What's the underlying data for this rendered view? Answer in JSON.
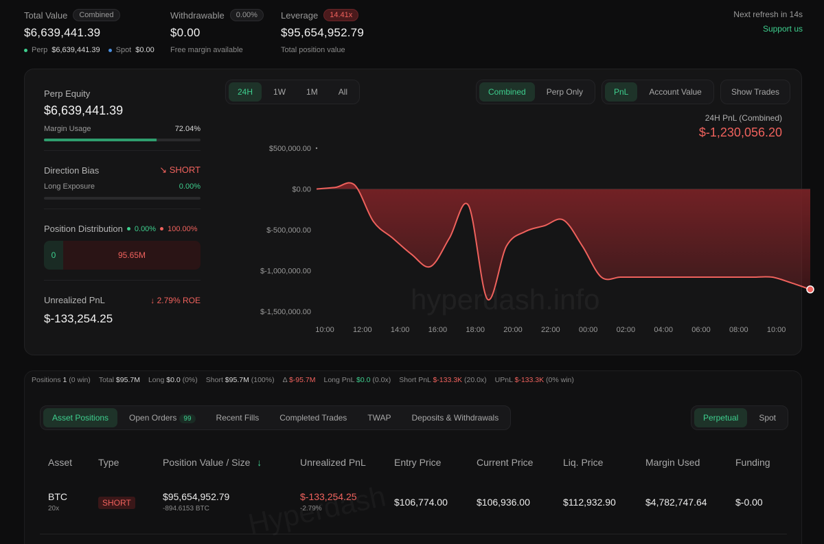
{
  "summary": {
    "total_value": {
      "label": "Total Value",
      "pill": "Combined",
      "value": "$6,639,441.39",
      "perp_label": "Perp",
      "perp_value": "$6,639,441.39",
      "spot_label": "Spot",
      "spot_value": "$0.00"
    },
    "withdrawable": {
      "label": "Withdrawable",
      "pill": "0.00%",
      "value": "$0.00",
      "sub": "Free margin available"
    },
    "leverage": {
      "label": "Leverage",
      "pill": "14.41x",
      "value": "$95,654,952.79",
      "sub": "Total position value"
    },
    "refresh": "Next refresh in 14s",
    "support": "Support us"
  },
  "left_panel": {
    "perp_equity": {
      "title": "Perp Equity",
      "value": "$6,639,441.39",
      "margin_label": "Margin Usage",
      "margin_value": "72.04%",
      "margin_fraction": 0.7204
    },
    "direction": {
      "title": "Direction Bias",
      "bias": "SHORT",
      "long_label": "Long Exposure",
      "long_value": "0.00%"
    },
    "distribution": {
      "title": "Position Distribution",
      "long_pct": "0.00%",
      "short_pct": "100.00%",
      "long_value": "0",
      "short_value": "95.65M"
    },
    "unrealized": {
      "title": "Unrealized PnL",
      "roe": "2.79% ROE",
      "value": "$-133,254.25"
    }
  },
  "chart_controls": {
    "ranges": [
      "24H",
      "1W",
      "1M",
      "All"
    ],
    "active_range": "24H",
    "scope": [
      "Combined",
      "Perp Only"
    ],
    "metric": [
      "PnL",
      "Account Value"
    ],
    "show_trades": "Show Trades",
    "title": "24H PnL (Combined)",
    "value": "$-1,230,056.20",
    "watermark": "hyperdash.info"
  },
  "chart_data": {
    "type": "area",
    "x": [
      "10:00",
      "11:00",
      "12:00",
      "13:00",
      "14:00",
      "15:00",
      "16:00",
      "17:00",
      "18:00",
      "18:30",
      "19:00",
      "20:00",
      "21:00",
      "22:00",
      "23:00",
      "00:00",
      "01:00",
      "02:00",
      "03:00",
      "04:00",
      "05:00",
      "06:00",
      "07:00",
      "08:00",
      "09:00",
      "10:00",
      "10:45"
    ],
    "values": [
      0,
      20000,
      50000,
      -400000,
      -600000,
      -800000,
      -950000,
      -600000,
      -200000,
      -1350000,
      -700000,
      -520000,
      -450000,
      -380000,
      -700000,
      -1080000,
      -1080000,
      -1080000,
      -1080000,
      -1080000,
      -1080000,
      -1080000,
      -1080000,
      -1080000,
      -1080000,
      -1150000,
      -1230056.2
    ],
    "y_ticks": [
      "$500,000.00",
      "$0.00",
      "$-500,000.00",
      "$-1,000,000.00",
      "$-1,500,000.00"
    ],
    "x_ticks": [
      "10:00",
      "12:00",
      "14:00",
      "16:00",
      "18:00",
      "20:00",
      "22:00",
      "00:00",
      "02:00",
      "04:00",
      "06:00",
      "08:00",
      "10:00"
    ],
    "ylim": [
      -1500000,
      500000
    ],
    "line_color": "#f0625d",
    "fill_color": "#7a2226"
  },
  "positions_strip": {
    "positions_label": "Positions",
    "positions_count": "1",
    "positions_win": "(0 win)",
    "total_label": "Total",
    "total_value": "$95.7M",
    "long_label": "Long",
    "long_value": "$0.0",
    "long_pct": "(0%)",
    "short_label": "Short",
    "short_value": "$95.7M",
    "short_pct": "(100%)",
    "delta_label": "Δ",
    "delta_value": "$-95.7M",
    "long_pnl_label": "Long PnL",
    "long_pnl_value": "$0.0",
    "long_pnl_x": "(0.0x)",
    "short_pnl_label": "Short PnL",
    "short_pnl_value": "$-133.3K",
    "short_pnl_x": "(20.0x)",
    "upnl_label": "UPnL",
    "upnl_value": "$-133.3K",
    "upnl_win": "(0% win)"
  },
  "tabs": {
    "items": [
      "Asset Positions",
      "Open Orders",
      "Recent Fills",
      "Completed Trades",
      "TWAP",
      "Deposits & Withdrawals"
    ],
    "open_orders_count": "99",
    "market": [
      "Perpetual",
      "Spot"
    ]
  },
  "table": {
    "headers": [
      "Asset",
      "Type",
      "Position Value / Size",
      "Unrealized PnL",
      "Entry Price",
      "Current Price",
      "Liq. Price",
      "Margin Used",
      "Funding"
    ],
    "row": {
      "asset": "BTC",
      "leverage": "20x",
      "type": "SHORT",
      "position_value": "$95,654,952.79",
      "size": "-894.6153 BTC",
      "upnl": "$-133,254.25",
      "upnl_pct": "-2.79%",
      "entry": "$106,774.00",
      "current": "$106,936.00",
      "liq": "$112,932.90",
      "margin": "$4,782,747.64",
      "funding": "$-0.00"
    },
    "watermark": "Hyperdash"
  }
}
